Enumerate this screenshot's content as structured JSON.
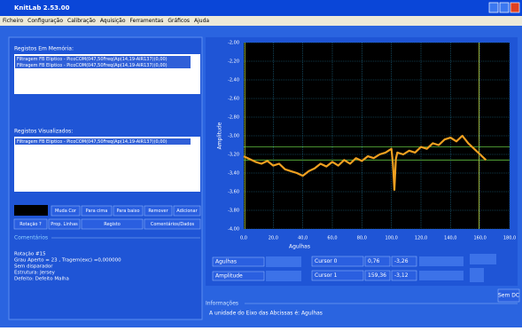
{
  "window": {
    "title": "KnitLab 2.53.00"
  },
  "menu": [
    "Ficheiro",
    "Configuração",
    "Calibração",
    "Aquisição",
    "Ferramentas",
    "Gráficos",
    "Ajuda"
  ],
  "memory_panel": {
    "label": "Registos Em Memória:",
    "items": [
      "Filtragem FB Eliptico - PicoCOM(047,50Freq(Ap(14,19-AIR137)(0,00)",
      "Filtragem FB Eliptico - PicoCOM(047,50Freq(Ap(14,19-AIR137)(0,00)"
    ]
  },
  "visible_panel": {
    "label": "Registos Visualizados:",
    "items": [
      "Filtragem FB Eliptico - PicoCOM(047,50Freq(Ap(14,19-AIR137)(0,00)"
    ]
  },
  "buttons_row1": [
    "Muda Cor",
    "Para cima",
    "Para baixo",
    "Remover",
    "Adicionar"
  ],
  "buttons_row2": [
    "Rotação ?",
    "Prop. Linhas",
    "Registo",
    "Comentários/Dados"
  ],
  "comments": {
    "label": "Comentários",
    "lines": [
      "Rotação #15",
      "Grau Aperto = 23 , Tragem(exc) =0,000000",
      "Sem disparador",
      "Estrutura: Jersey",
      "Defeito: Defeito Malha"
    ]
  },
  "controls": {
    "x_select": "Agulhas",
    "y_select": "Amplitude",
    "sem_dc": "Sem DC"
  },
  "info": {
    "label": "Informações",
    "text": "A unidade do Eixo das Abcissas é: Agulhas"
  },
  "chart_data": {
    "type": "line",
    "xlabel": "Agulhas",
    "ylabel": "Amplitude",
    "xlim": [
      0,
      180
    ],
    "xticks": [
      {
        "value": 0,
        "label": "0,0"
      },
      {
        "value": 20,
        "label": "20,0"
      },
      {
        "value": 40,
        "label": "40,0"
      },
      {
        "value": 60,
        "label": "60,0"
      },
      {
        "value": 80,
        "label": "80,0"
      },
      {
        "value": 100,
        "label": "100,0"
      },
      {
        "value": 120,
        "label": "120,0"
      },
      {
        "value": 140,
        "label": "140,0"
      },
      {
        "value": 160,
        "label": "160,0"
      },
      {
        "value": 180,
        "label": "180,0"
      }
    ],
    "ylim": [
      -4,
      -2
    ],
    "yticks": [
      {
        "value": -2,
        "label": "-2,00"
      },
      {
        "value": -2.2,
        "label": "-2,20"
      },
      {
        "value": -2.4,
        "label": "-2,40"
      },
      {
        "value": -2.6,
        "label": "-2,60"
      },
      {
        "value": -2.8,
        "label": "-2,80"
      },
      {
        "value": -3,
        "label": "-3,00"
      },
      {
        "value": -3.2,
        "label": "-3,20"
      },
      {
        "value": -3.4,
        "label": "-3,40"
      },
      {
        "value": -3.6,
        "label": "-3,60"
      },
      {
        "value": -3.8,
        "label": "-3,80"
      },
      {
        "value": -4,
        "label": "-4,00"
      }
    ],
    "grid": true,
    "color": "#f0a020",
    "x": [
      0,
      4,
      8,
      12,
      16,
      20,
      24,
      28,
      32,
      36,
      40,
      44,
      48,
      52,
      56,
      60,
      64,
      68,
      72,
      76,
      80,
      84,
      88,
      92,
      96,
      100,
      101,
      102,
      103,
      104,
      108,
      112,
      116,
      120,
      124,
      128,
      132,
      136,
      140,
      144,
      148,
      152,
      156,
      160,
      164
    ],
    "values": [
      -3.22,
      -3.25,
      -3.28,
      -3.3,
      -3.27,
      -3.32,
      -3.3,
      -3.36,
      -3.38,
      -3.4,
      -3.43,
      -3.38,
      -3.35,
      -3.3,
      -3.33,
      -3.28,
      -3.32,
      -3.26,
      -3.3,
      -3.24,
      -3.27,
      -3.22,
      -3.24,
      -3.2,
      -3.18,
      -3.14,
      -3.3,
      -3.58,
      -3.25,
      -3.18,
      -3.2,
      -3.16,
      -3.18,
      -3.12,
      -3.14,
      -3.08,
      -3.1,
      -3.04,
      -3.02,
      -3.06,
      -3.0,
      -3.08,
      -3.14,
      -3.2,
      -3.26
    ],
    "cursors": [
      {
        "name": "Cursor 0",
        "x": {
          "value": 0.76,
          "label": "0,76"
        },
        "y": {
          "value": -3.26,
          "label": "-3,26"
        }
      },
      {
        "name": "Cursor 1",
        "x": {
          "value": 159.36,
          "label": "159,36"
        },
        "y": {
          "value": -3.12,
          "label": "-3,12"
        }
      }
    ]
  }
}
